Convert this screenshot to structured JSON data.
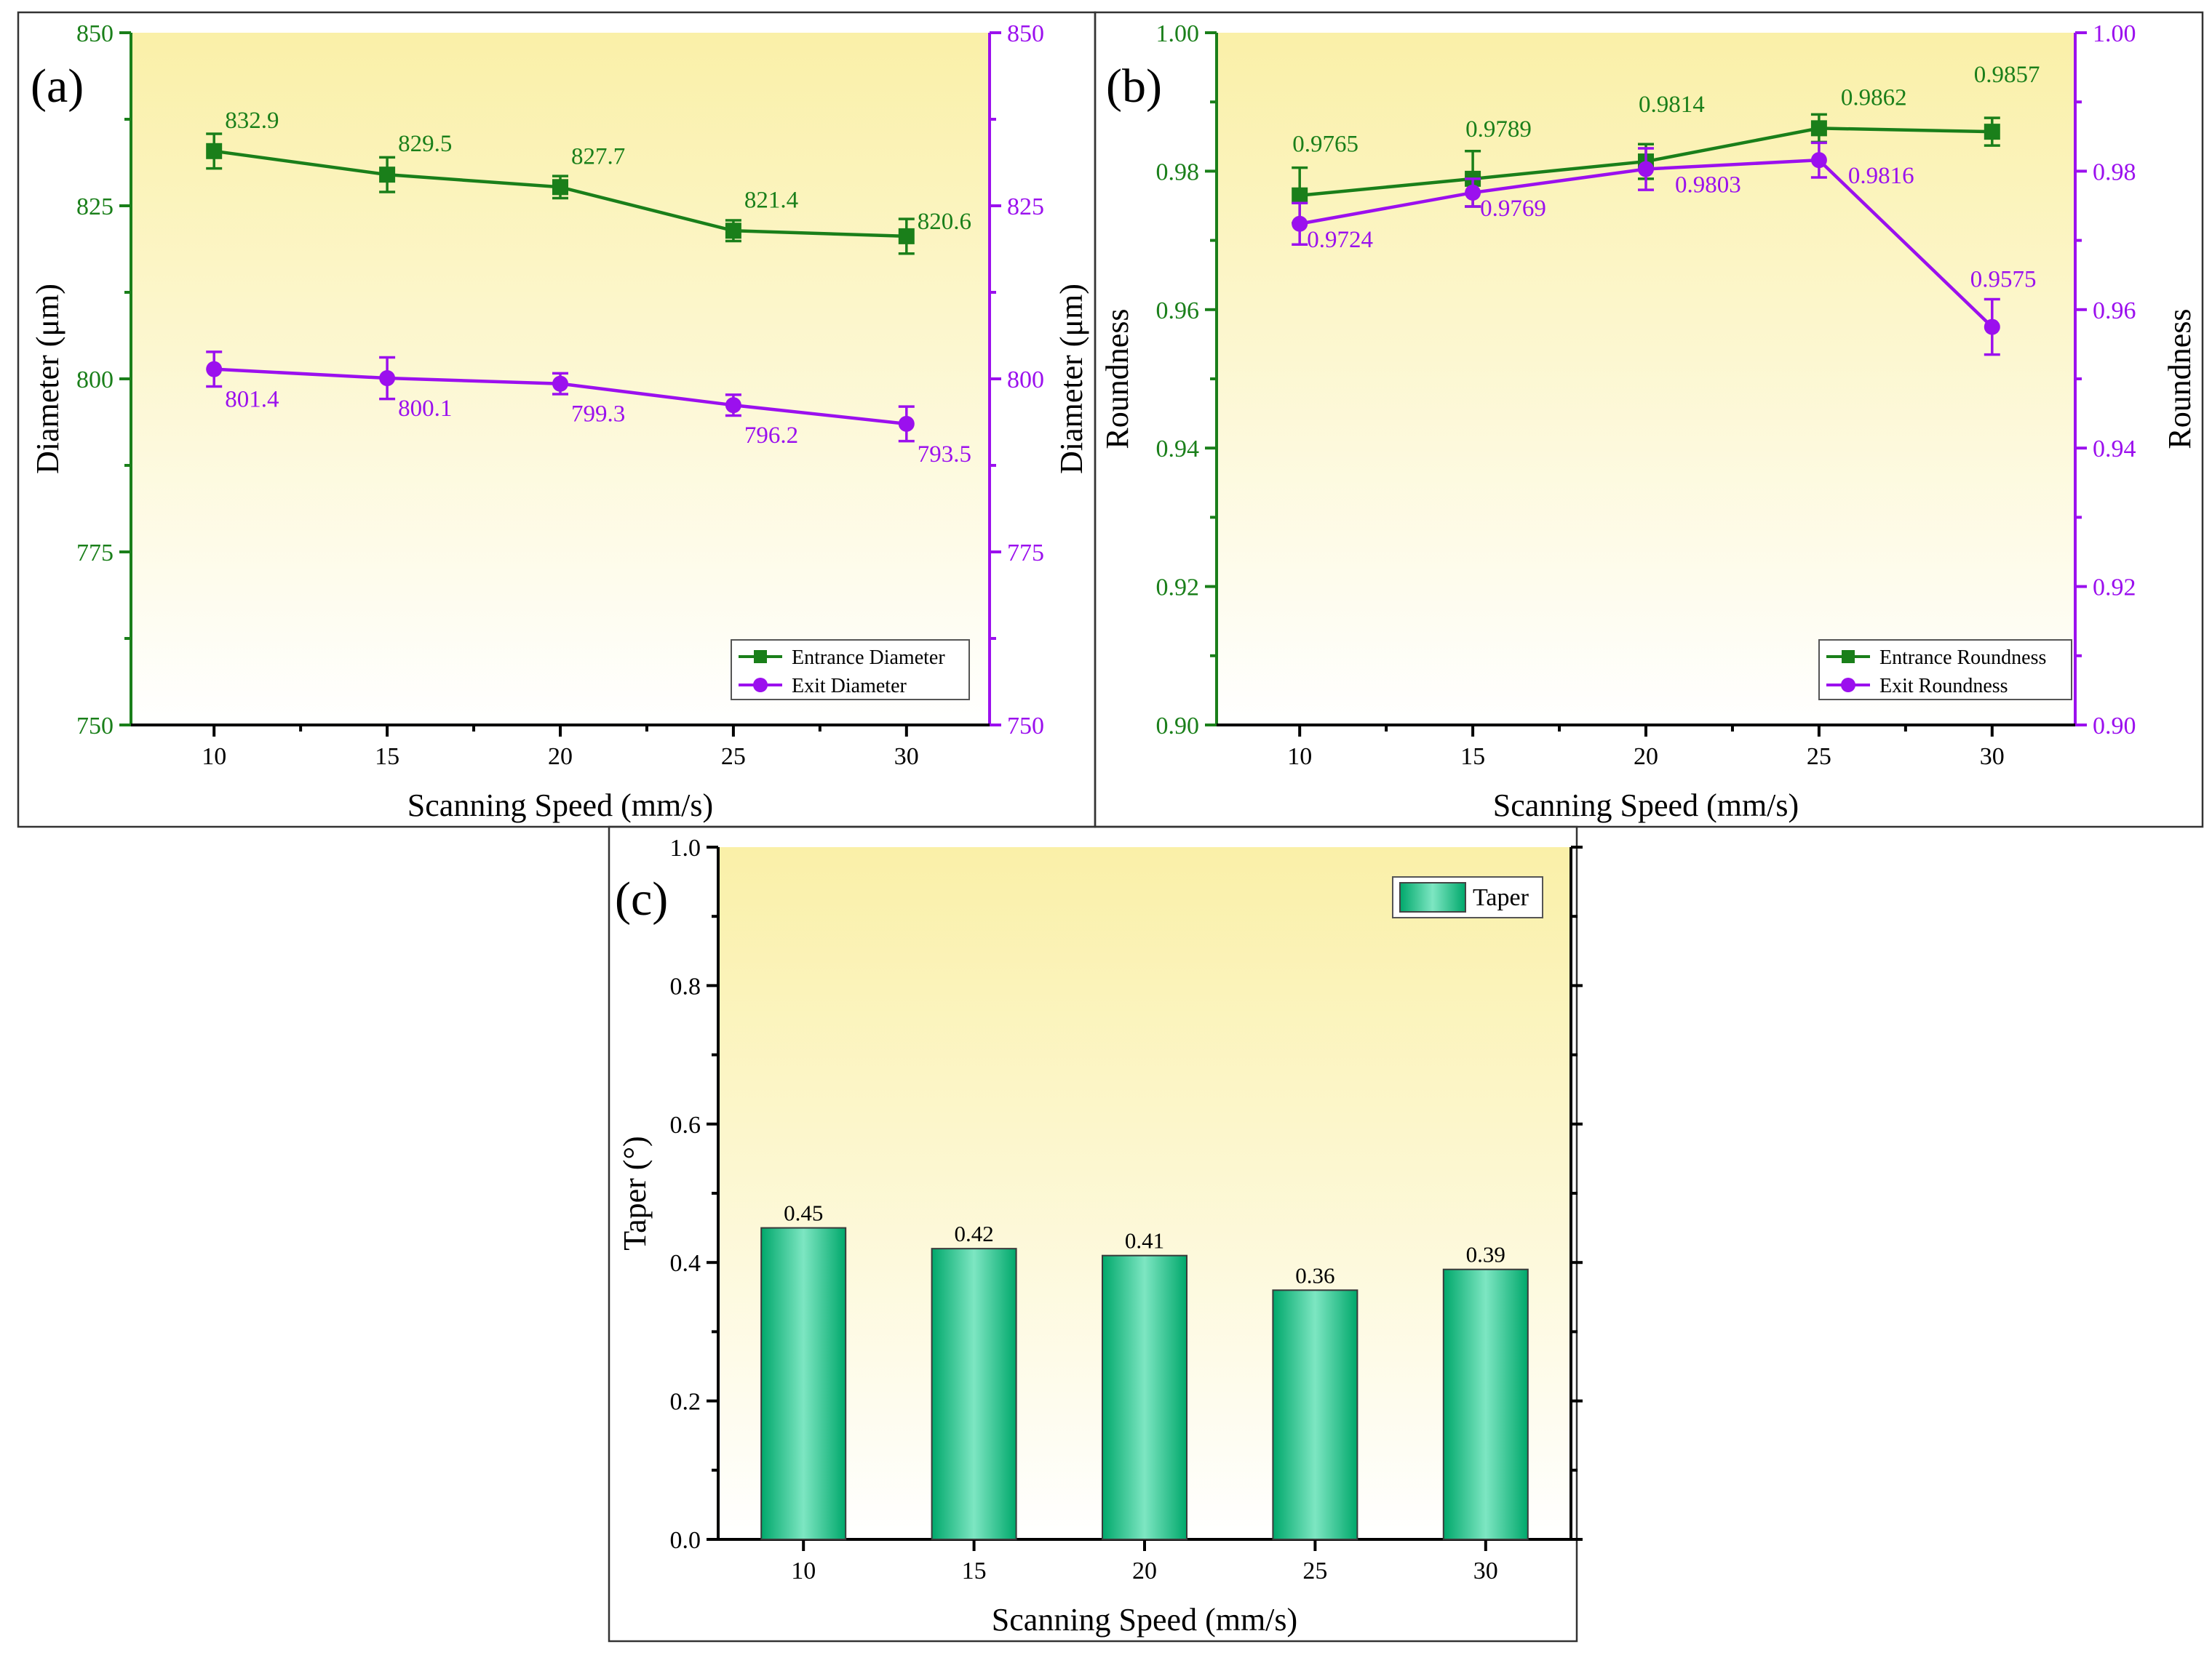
{
  "colors": {
    "entrance": "#1a7f1a",
    "exit": "#9b10ee",
    "bar_edge": "#00a86b",
    "bar_center": "#7de6c2",
    "plot_bg_top": "#faf0a8",
    "plot_bg_bottom": "#ffffff"
  },
  "chart_data": [
    {
      "panel_label": "(a)",
      "type": "line",
      "categories": [
        10,
        15,
        20,
        25,
        30
      ],
      "xlabel": "Scanning Speed (mm/s)",
      "ylabel_left": "Diameter (μm)",
      "ylabel_right": "Diameter (μm)",
      "ylim": [
        750,
        850
      ],
      "yticks": [
        750,
        775,
        800,
        825,
        850
      ],
      "ytick_labels": [
        "750",
        "775",
        "800",
        "825",
        "850"
      ],
      "series": [
        {
          "name": "Entrance Diameter",
          "marker": "square",
          "color_key": "entrance",
          "values": [
            832.9,
            829.5,
            827.7,
            821.4,
            820.6
          ],
          "labels": [
            "832.9",
            "829.5",
            "827.7",
            "821.4",
            "820.6"
          ],
          "errors": [
            2.5,
            2.5,
            1.6,
            1.5,
            2.5
          ]
        },
        {
          "name": "Exit Diameter",
          "marker": "circle",
          "color_key": "exit",
          "values": [
            801.4,
            800.1,
            799.3,
            796.2,
            793.5
          ],
          "labels": [
            "801.4",
            "800.1",
            "799.3",
            "796.2",
            "793.5"
          ],
          "errors": [
            2.5,
            3.0,
            1.5,
            1.5,
            2.5
          ]
        }
      ]
    },
    {
      "panel_label": "(b)",
      "type": "line",
      "categories": [
        10,
        15,
        20,
        25,
        30
      ],
      "xlabel": "Scanning Speed (mm/s)",
      "ylabel_left": "Roundness",
      "ylabel_right": "Roundness",
      "ylim": [
        0.9,
        1.0
      ],
      "yticks": [
        0.9,
        0.92,
        0.94,
        0.96,
        0.98,
        1.0
      ],
      "ytick_labels": [
        "0.90",
        "0.92",
        "0.94",
        "0.96",
        "0.98",
        "1.00"
      ],
      "series": [
        {
          "name": "Entrance Roundness",
          "marker": "square",
          "color_key": "entrance",
          "values": [
            0.9765,
            0.9789,
            0.9814,
            0.9862,
            0.9857
          ],
          "labels": [
            "0.9765",
            "0.9789",
            "0.9814",
            "0.9862",
            "0.9857"
          ],
          "errors": [
            0.004,
            0.004,
            0.0025,
            0.002,
            0.002
          ]
        },
        {
          "name": "Exit Roundness",
          "marker": "circle",
          "color_key": "exit",
          "values": [
            0.9724,
            0.9769,
            0.9803,
            0.9816,
            0.9575
          ],
          "labels": [
            "0.9724",
            "0.9769",
            "0.9803",
            "0.9816",
            "0.9575"
          ],
          "errors": [
            0.003,
            0.002,
            0.003,
            0.0025,
            0.004
          ]
        }
      ]
    },
    {
      "panel_label": "(c)",
      "type": "bar",
      "categories": [
        10,
        15,
        20,
        25,
        30
      ],
      "xlabel": "Scanning Speed (mm/s)",
      "ylabel": "Taper (°)",
      "ylim": [
        0,
        1.0
      ],
      "yticks": [
        0,
        0.2,
        0.4,
        0.6,
        0.8,
        1.0
      ],
      "ytick_labels": [
        "0.0",
        "0.2",
        "0.4",
        "0.6",
        "0.8",
        "1.0"
      ],
      "series": [
        {
          "name": "Taper",
          "values": [
            0.45,
            0.42,
            0.41,
            0.36,
            0.39
          ],
          "labels": [
            "0.45",
            "0.42",
            "0.41",
            "0.36",
            "0.39"
          ]
        }
      ]
    }
  ]
}
